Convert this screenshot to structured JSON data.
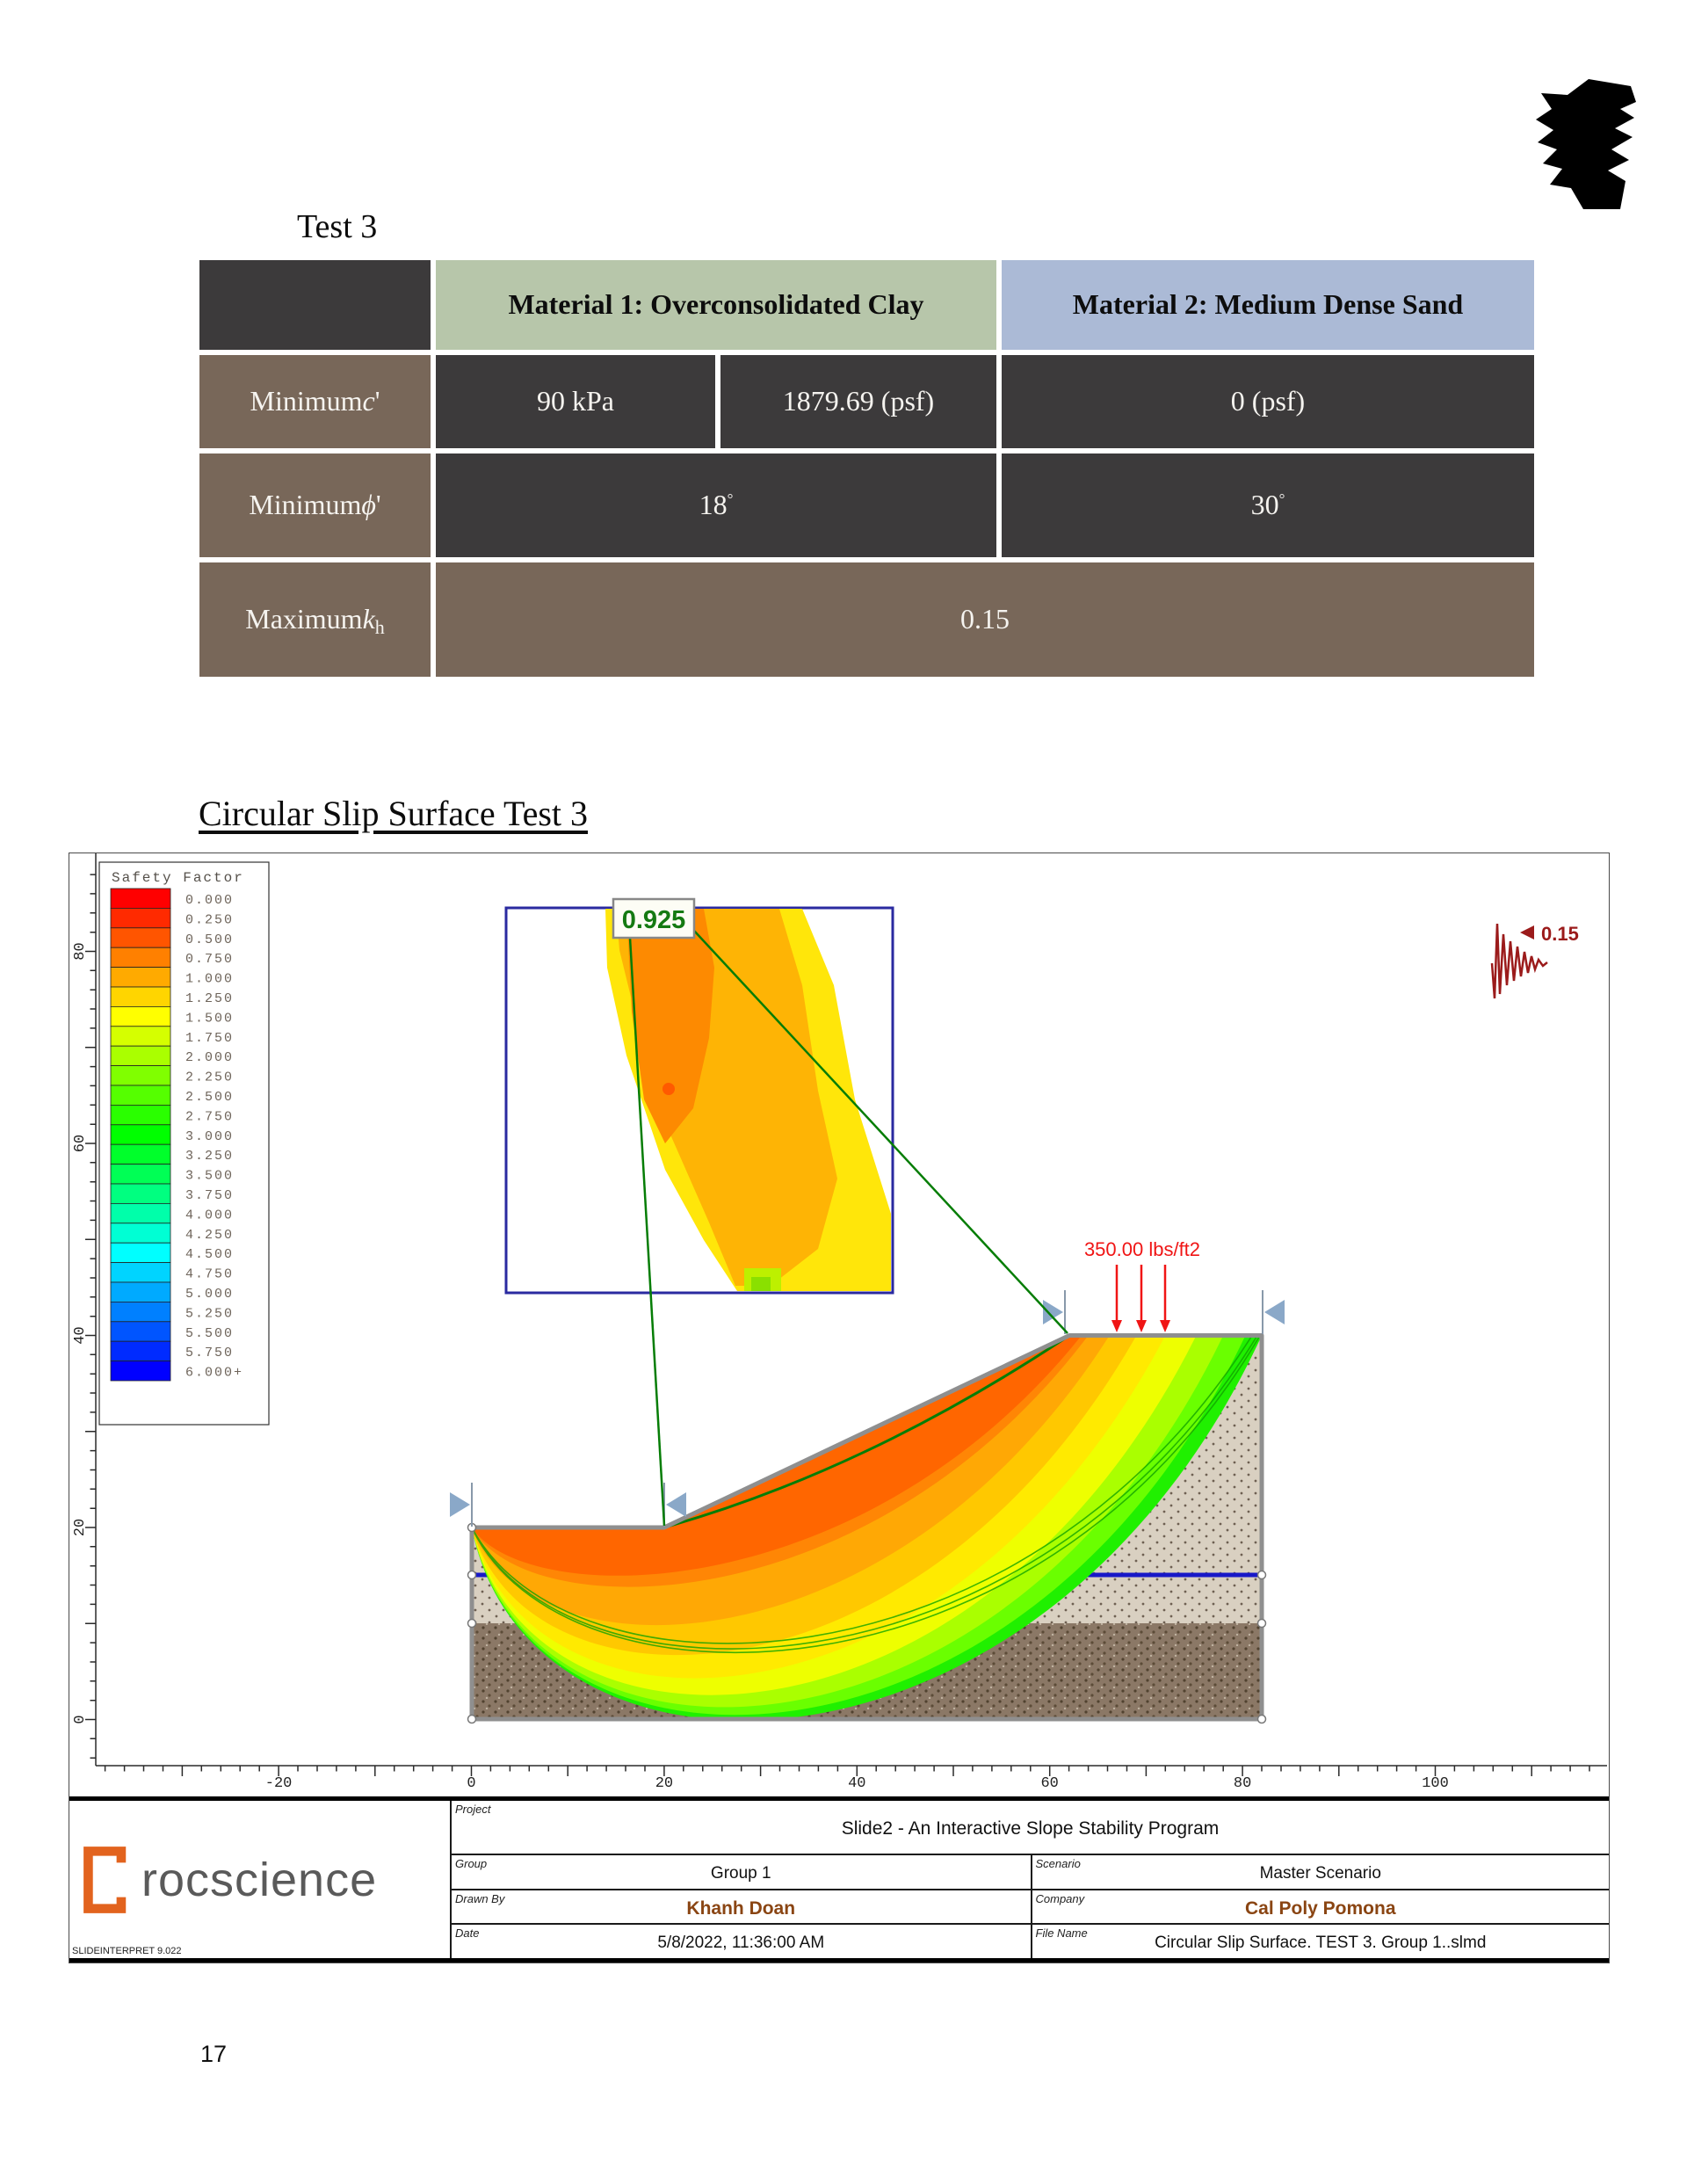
{
  "page": {
    "number": "17"
  },
  "doc": {
    "table_title": "Test 3",
    "figure_title": "Circular Slip Surface Test 3"
  },
  "table": {
    "col_headers": [
      "Material 1: Overconsolidated Clay",
      "Material 2: Medium Dense Sand"
    ],
    "row_c": {
      "label_prefix": "Minimum ",
      "label_symbol": "c",
      "label_mark": "'",
      "m1_a": "90 kPa",
      "m1_b": "1879.69 (psf)",
      "m2": "0 (psf)"
    },
    "row_phi": {
      "label_prefix": "Minimum ",
      "label_symbol": "ϕ",
      "label_mark": "'",
      "m1": "18",
      "m1_deg": "°",
      "m2": "30",
      "m2_deg": "°"
    },
    "row_kh": {
      "label_prefix": "Maximum ",
      "label_symbol": "k",
      "label_sub": "h",
      "value": "0.15"
    }
  },
  "figure": {
    "colors": {
      "water": "#1818c8",
      "critical_surface": "#067d06",
      "leader": "#067d06",
      "load": "#f01515",
      "seismic": "#9b1b1b",
      "marker": "#8aa8c8",
      "safety_label": "#157a12"
    },
    "chart_data": {
      "type": "slope-stability-diagram",
      "title": "Circular Slip Surface Test 3",
      "x_axis": {
        "ticks": [
          -20,
          0,
          20,
          40,
          60,
          80,
          100
        ],
        "range": [
          -38,
          116
        ],
        "minor_step": 2
      },
      "y_axis": {
        "ticks": [
          0,
          20,
          40,
          60,
          80
        ],
        "range": [
          -4,
          88
        ],
        "minor_step": 2
      },
      "slope_surface_xy": [
        [
          0,
          20
        ],
        [
          20,
          20
        ],
        [
          62,
          40
        ],
        [
          82,
          40
        ]
      ],
      "model_outline_xy": [
        [
          0,
          20
        ],
        [
          20,
          20
        ],
        [
          62,
          40
        ],
        [
          82,
          40
        ],
        [
          82,
          0
        ],
        [
          0,
          0
        ]
      ],
      "layer_boundary_elevation": 10,
      "water_table_elevation": 15,
      "critical_slip_surface": {
        "entry_xy": [
          20,
          20
        ],
        "exit_xy": [
          62,
          40
        ],
        "min_safety_factor": 0.925
      },
      "distributed_load": {
        "label": "350.00 lbs/ft2",
        "x_positions": [
          67,
          69.5,
          72
        ],
        "direction": "down"
      },
      "seismic": {
        "coefficient": 0.15
      },
      "slope_limit_marker_x": [
        0,
        20,
        62,
        82
      ],
      "fan_bands": [
        {
          "exit_x": 82.0,
          "sag_elev": -9.5,
          "color": "hsl(112,100%,47%)"
        },
        {
          "exit_x": 80.3,
          "sag_elev": -8.7,
          "color": "hsl(95,100%,50%)"
        },
        {
          "exit_x": 78.0,
          "sag_elev": -7.6,
          "color": "hsl(80,100%,50%)"
        },
        {
          "exit_x": 75.2,
          "sag_elev": -5.9,
          "color": "hsl(64,100%,50%)"
        },
        {
          "exit_x": 72.0,
          "sag_elev": -3.5,
          "color": "hsl(55,100%,50%)"
        },
        {
          "exit_x": 69.0,
          "sag_elev": -0.2,
          "color": "hsl(47,100%,50%)"
        },
        {
          "exit_x": 66.2,
          "sag_elev": 4.1,
          "color": "hsl(39,100%,51%)"
        },
        {
          "exit_x": 64.0,
          "sag_elev": 9.7,
          "color": "hsl(31,100%,51%)"
        },
        {
          "exit_x": 63.3,
          "sag_elev": 11.4,
          "color": "hsl(24,100%,50%)"
        }
      ],
      "annotations": {
        "min_fs": "0.925",
        "load": "350.00 lbs/ft2",
        "seismic": "0.15"
      },
      "legend": {
        "title": "Safety Factor",
        "position": "top-left",
        "values": [
          "0.000",
          "0.250",
          "0.500",
          "0.750",
          "1.000",
          "1.250",
          "1.500",
          "1.750",
          "2.000",
          "2.250",
          "2.500",
          "2.750",
          "3.000",
          "3.250",
          "3.500",
          "3.750",
          "4.000",
          "4.250",
          "4.500",
          "4.750",
          "5.000",
          "5.250",
          "5.500",
          "5.750",
          "6.000+"
        ],
        "colors": [
          "hsl(0,100%,50%)",
          "hsl(10,100%,50%)",
          "hsl(20,100%,50%)",
          "hsl(30,100%,50%)",
          "hsl(40,100%,50%)",
          "hsl(50,100%,50%)",
          "hsl(60,100%,50%)",
          "hsl(70,100%,50%)",
          "hsl(80,100%,50%)",
          "hsl(90,100%,50%)",
          "hsl(100,100%,50%)",
          "hsl(110,100%,50%)",
          "hsl(120,100%,50%)",
          "hsl(130,100%,50%)",
          "hsl(140,100%,50%)",
          "hsl(150,100%,50%)",
          "hsl(160,100%,50%)",
          "hsl(170,100%,50%)",
          "hsl(180,100%,50%)",
          "hsl(190,100%,50%)",
          "hsl(200,100%,50%)",
          "hsl(210,100%,50%)",
          "hsl(220,100%,50%)",
          "hsl(230,100%,50%)",
          "hsl(240,100%,50%)"
        ]
      }
    }
  },
  "titleblock": {
    "brand": "rocscience",
    "version": "SLIDEINTERPRET 9.022",
    "labels": {
      "project": "Project",
      "group": "Group",
      "scenario": "Scenario",
      "drawn_by": "Drawn By",
      "company": "Company",
      "date": "Date",
      "file_name": "File Name"
    },
    "values": {
      "project": "Slide2 - An Interactive Slope Stability Program",
      "group": "Group 1",
      "scenario": "Master Scenario",
      "drawn_by": "Khanh Doan",
      "company": "Cal Poly Pomona",
      "date": "5/8/2022, 11:36:00 AM",
      "file_name": "Circular Slip Surface. TEST 3. Group 1..slmd"
    }
  }
}
